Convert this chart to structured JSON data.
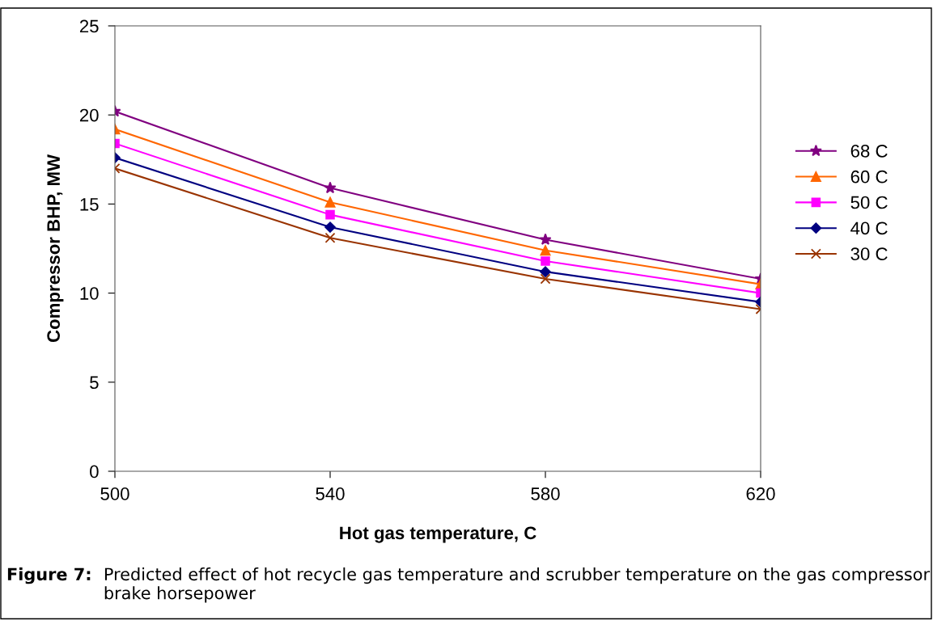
{
  "chart_data": {
    "type": "line",
    "xlabel": "Hot gas temperature, C",
    "ylabel": "Compressor BHP, MW",
    "x": [
      500,
      540,
      580,
      620
    ],
    "xlim": [
      500,
      620
    ],
    "xticks": [
      500,
      540,
      580,
      620
    ],
    "ylim": [
      0,
      25
    ],
    "yticks": [
      0,
      5,
      10,
      15,
      20,
      25
    ],
    "grid": false,
    "legend": "right",
    "series": [
      {
        "name": "68 C",
        "color": "#800080",
        "marker": "star",
        "values": [
          20.2,
          15.9,
          13.0,
          10.8
        ]
      },
      {
        "name": "60 C",
        "color": "#ff6600",
        "marker": "triangle",
        "values": [
          19.2,
          15.1,
          12.4,
          10.5
        ]
      },
      {
        "name": "50 C",
        "color": "#ff00ff",
        "marker": "square",
        "values": [
          18.4,
          14.4,
          11.8,
          10.0
        ]
      },
      {
        "name": "40 C",
        "color": "#000080",
        "marker": "diamond",
        "values": [
          17.6,
          13.7,
          11.2,
          9.5
        ]
      },
      {
        "name": "30 C",
        "color": "#993300",
        "marker": "cross",
        "values": [
          17.0,
          13.1,
          10.8,
          9.1
        ]
      }
    ],
    "annotations": [
      "Figure 7:",
      "Predicted effect of hot recycle gas temperature and scrubber temperature on the gas compressor brake horsepower"
    ]
  }
}
